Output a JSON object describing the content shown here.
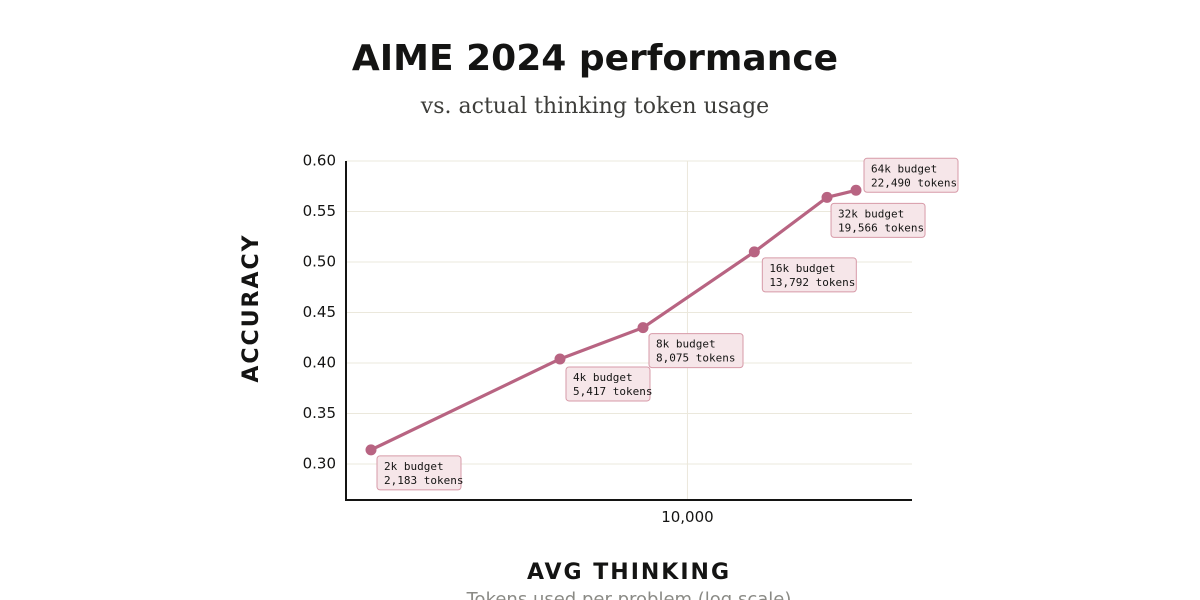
{
  "chart_data": {
    "type": "line",
    "title": "AIME 2024 performance",
    "subtitle": "vs. actual thinking token usage",
    "xlabel": "AVG THINKING",
    "xlabel_sub": "Tokens used per problem (log scale)",
    "ylabel": "ACCURACY",
    "x_scale": "log",
    "xlim": [
      1800,
      27000
    ],
    "ylim": [
      0.28,
      0.6
    ],
    "x_ticks": [
      {
        "value": 10000,
        "label": "10,000"
      }
    ],
    "y_ticks": [
      {
        "value": 0.3,
        "label": "0.30"
      },
      {
        "value": 0.35,
        "label": "0.35"
      },
      {
        "value": 0.4,
        "label": "0.40"
      },
      {
        "value": 0.45,
        "label": "0.45"
      },
      {
        "value": 0.5,
        "label": "0.50"
      },
      {
        "value": 0.55,
        "label": "0.55"
      },
      {
        "value": 0.6,
        "label": "0.60"
      }
    ],
    "grid": true,
    "series": [
      {
        "color": "#b86482",
        "points": [
          {
            "x": 2183,
            "y": 0.314,
            "annotation": [
              "2k budget",
              "2,183 tokens"
            ]
          },
          {
            "x": 5417,
            "y": 0.404,
            "annotation": [
              "4k budget",
              "5,417 tokens"
            ]
          },
          {
            "x": 8075,
            "y": 0.435,
            "annotation": [
              "8k budget",
              "8,075 tokens"
            ]
          },
          {
            "x": 13792,
            "y": 0.51,
            "annotation": [
              "16k budget",
              "13,792 tokens"
            ]
          },
          {
            "x": 19566,
            "y": 0.564,
            "annotation": [
              "32k budget",
              "19,566 tokens"
            ]
          },
          {
            "x": 22490,
            "y": 0.571,
            "annotation": [
              "64k budget",
              "22,490 tokens"
            ]
          }
        ]
      }
    ]
  },
  "colors": {
    "line": "#b86482",
    "grid": "#ebe8dc",
    "axis": "#141413",
    "annotation_fill": "#f6e6e9",
    "annotation_stroke": "#d79aa8"
  }
}
